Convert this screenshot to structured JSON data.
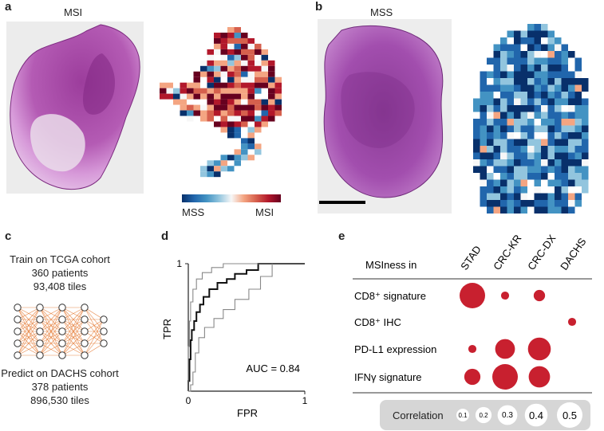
{
  "panel_a": {
    "label": "a",
    "slide_title": "MSI",
    "colorbar": {
      "left_label": "MSS",
      "right_label": "MSI"
    }
  },
  "panel_b": {
    "label": "b",
    "slide_title": "MSS"
  },
  "panel_c": {
    "label": "c",
    "train_lines": [
      "Train on TCGA cohort",
      "360 patients",
      "93,408 tiles"
    ],
    "predict_lines": [
      "Predict on DACHS cohort",
      "378 patients",
      "896,530 tiles"
    ]
  },
  "panel_d": {
    "label": "d",
    "chart_data": {
      "type": "line",
      "xlabel": "FPR",
      "ylabel": "TPR",
      "xlim": [
        0,
        1
      ],
      "ylim": [
        0,
        1
      ],
      "x_ticks": [
        "0",
        "1"
      ],
      "y_ticks": [
        "1"
      ],
      "annotation": "AUC = 0.84",
      "series": [
        {
          "role": "roc",
          "points": [
            [
              0,
              0
            ],
            [
              0,
              0.08
            ],
            [
              0.01,
              0.08
            ],
            [
              0.01,
              0.25
            ],
            [
              0.02,
              0.25
            ],
            [
              0.02,
              0.4
            ],
            [
              0.03,
              0.4
            ],
            [
              0.03,
              0.48
            ],
            [
              0.05,
              0.48
            ],
            [
              0.05,
              0.55
            ],
            [
              0.07,
              0.55
            ],
            [
              0.07,
              0.62
            ],
            [
              0.1,
              0.62
            ],
            [
              0.1,
              0.68
            ],
            [
              0.13,
              0.68
            ],
            [
              0.13,
              0.74
            ],
            [
              0.18,
              0.74
            ],
            [
              0.18,
              0.8
            ],
            [
              0.25,
              0.8
            ],
            [
              0.25,
              0.85
            ],
            [
              0.33,
              0.85
            ],
            [
              0.33,
              0.88
            ],
            [
              0.4,
              0.88
            ],
            [
              0.4,
              0.92
            ],
            [
              0.5,
              0.92
            ],
            [
              0.5,
              0.95
            ],
            [
              0.6,
              0.95
            ],
            [
              0.6,
              1.0
            ],
            [
              1.0,
              1.0
            ]
          ]
        },
        {
          "role": "ci-upper",
          "points": [
            [
              0,
              0
            ],
            [
              0,
              0.35
            ],
            [
              0.01,
              0.35
            ],
            [
              0.01,
              0.55
            ],
            [
              0.02,
              0.55
            ],
            [
              0.02,
              0.7
            ],
            [
              0.04,
              0.7
            ],
            [
              0.04,
              0.8
            ],
            [
              0.07,
              0.8
            ],
            [
              0.07,
              0.88
            ],
            [
              0.12,
              0.88
            ],
            [
              0.12,
              0.93
            ],
            [
              0.2,
              0.93
            ],
            [
              0.2,
              0.97
            ],
            [
              0.3,
              0.97
            ],
            [
              0.3,
              1.0
            ],
            [
              1.0,
              1.0
            ]
          ]
        },
        {
          "role": "ci-lower",
          "points": [
            [
              0,
              0
            ],
            [
              0.02,
              0
            ],
            [
              0.02,
              0.05
            ],
            [
              0.04,
              0.05
            ],
            [
              0.04,
              0.15
            ],
            [
              0.06,
              0.15
            ],
            [
              0.06,
              0.3
            ],
            [
              0.09,
              0.3
            ],
            [
              0.09,
              0.42
            ],
            [
              0.14,
              0.42
            ],
            [
              0.14,
              0.5
            ],
            [
              0.22,
              0.5
            ],
            [
              0.22,
              0.57
            ],
            [
              0.3,
              0.57
            ],
            [
              0.3,
              0.64
            ],
            [
              0.4,
              0.64
            ],
            [
              0.4,
              0.72
            ],
            [
              0.52,
              0.72
            ],
            [
              0.52,
              0.8
            ],
            [
              0.62,
              0.8
            ],
            [
              0.62,
              0.9
            ],
            [
              0.72,
              0.9
            ],
            [
              0.72,
              1.0
            ],
            [
              1.0,
              1.0
            ]
          ]
        }
      ]
    }
  },
  "panel_e": {
    "label": "e",
    "chart_data": {
      "type": "bubble",
      "corner_label": "MSIness in",
      "columns": [
        "STAD",
        "CRC-KR",
        "CRC-DX",
        "DACHS"
      ],
      "rows": [
        {
          "label": "CD8⁺ signature",
          "values": [
            0.5,
            0.05,
            0.1,
            0
          ]
        },
        {
          "label": "CD8⁺ IHC",
          "values": [
            0,
            0,
            0,
            0.05
          ]
        },
        {
          "label": "PD-L1 expression",
          "values": [
            0.05,
            0.3,
            0.4,
            0
          ]
        },
        {
          "label": "IFNγ signature",
          "values": [
            0.2,
            0.5,
            0.35,
            0
          ]
        }
      ],
      "bubble_color": "#c8202f",
      "legend": {
        "title": "Correlation",
        "values": [
          "0.1",
          "0.2",
          "0.3",
          "0.4",
          "0.5"
        ]
      }
    }
  },
  "heatmap_a": {
    "cell_colors": [
      "#08306b",
      "#2166ac",
      "#4393c3",
      "#92c5de",
      "#f7f7f7",
      "#f4a582",
      "#d6604d",
      "#b2182b",
      "#67001f"
    ]
  }
}
